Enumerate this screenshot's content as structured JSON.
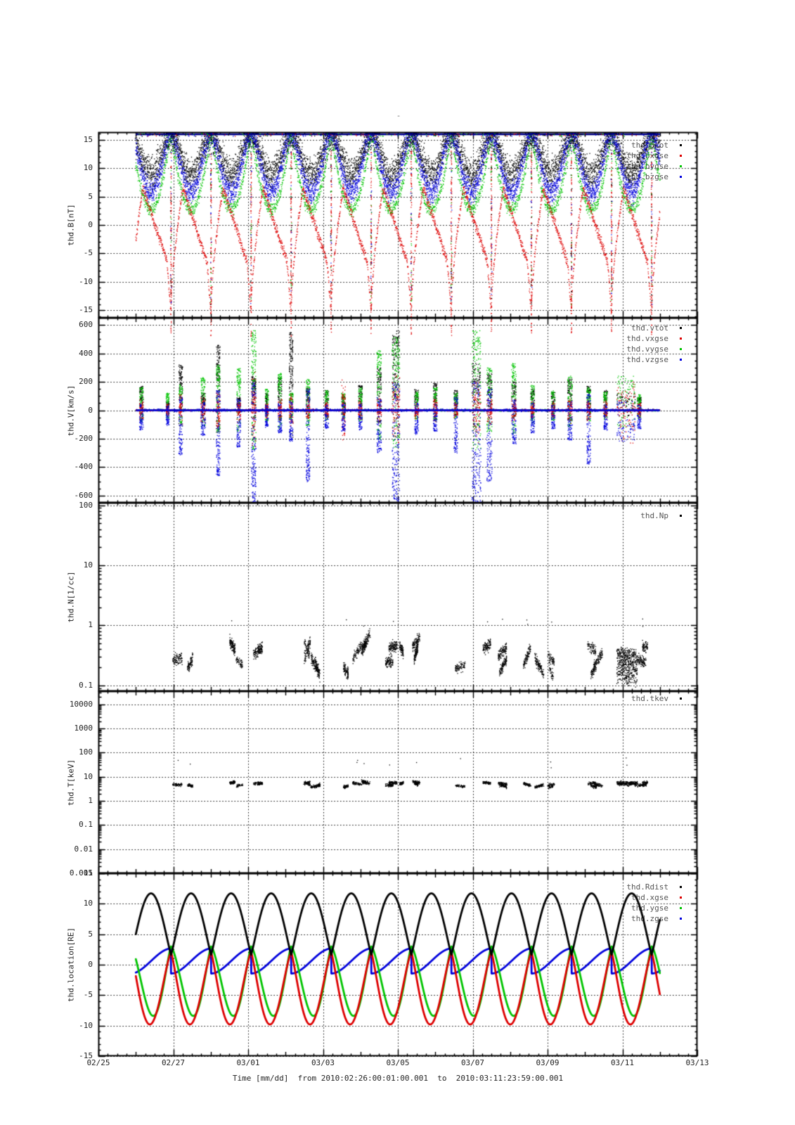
{
  "figure": {
    "title": "-",
    "background": "#ffffff"
  },
  "chart_data": {
    "type": "scatter",
    "title": "-",
    "xlabel": "Time [mm/dd]  from 2010:02:26:00:01:00.001  to  2010:03:11:23:59:00.001",
    "x_tick_labels": [
      "02/25",
      "02/27",
      "03/01",
      "03/03",
      "03/05",
      "03/07",
      "03/09",
      "03/11",
      "03/13"
    ],
    "x_range_days": [
      0,
      16
    ],
    "x_major_step_days": 2,
    "x_minor_step_days": 0.25,
    "data_span_days": [
      1.0,
      15.0
    ],
    "grid": "dotted",
    "orbit_model": {
      "period_days": 1.07,
      "first_perigee_day": 1.94
    },
    "colors": {
      "black": "#000000",
      "red": "#dd0000",
      "green": "#00c400",
      "blue": "#0000dd",
      "navy": "#000080"
    },
    "panels": [
      {
        "id": "bfield",
        "ylabel": "thd.B[nT]",
        "yscale": "linear",
        "ylim": [
          -16.3,
          16.3
        ],
        "yticks": [
          {
            "v": 15,
            "t": "15"
          },
          {
            "v": 10,
            "t": "10"
          },
          {
            "v": 5,
            "t": "5"
          },
          {
            "v": 0,
            "t": "0"
          },
          {
            "v": -5,
            "t": "-5"
          },
          {
            "v": -10,
            "t": "-10"
          },
          {
            "v": -15,
            "t": "-15"
          }
        ],
        "y_minor_step": 1,
        "legend": [
          {
            "label": "thd.btot",
            "color": "#000000"
          },
          {
            "label": "thd.bxgse",
            "color": "#dd0000"
          },
          {
            "label": "thd.bygse",
            "color": "#00c400"
          },
          {
            "label": "thd.bzgse",
            "color": "#0000dd"
          }
        ],
        "gen": "bfield",
        "model": {
          "top_saturation_line": {
            "color": "#000080",
            "value": 16.0
          },
          "btot": {
            "base": 12.2,
            "orbit_amp": 3.3,
            "noise": 2.6,
            "clip_max": 16.15
          },
          "bygse": {
            "top": 16.3,
            "dip_depth": 13.6,
            "dip_pow": 0.95,
            "noise": 1.1
          },
          "bzgse": {
            "top": 16.3,
            "dip_depth": 10.5,
            "dip_pow": 1.6,
            "noise": 2.0
          },
          "bxgse": {
            "min": -15.8,
            "peak": 6.5,
            "peak_phase": 0.3,
            "mid_end": -6.5,
            "plunge_phase": 0.9,
            "noise": 0.9
          },
          "perigee_streak_range": [
            -15.8,
            13.0
          ]
        }
      },
      {
        "id": "velocity",
        "ylabel": "thd.V[km/s]",
        "yscale": "linear",
        "ylim": [
          -650,
          650
        ],
        "yticks": [
          {
            "v": 600,
            "t": "600"
          },
          {
            "v": 400,
            "t": "400"
          },
          {
            "v": 200,
            "t": "200"
          },
          {
            "v": 0,
            "t": "0"
          },
          {
            "v": -200,
            "t": "-200"
          },
          {
            "v": -400,
            "t": "-400"
          },
          {
            "v": -600,
            "t": "-600"
          }
        ],
        "y_minor_step": 50,
        "legend": [
          {
            "label": "thd.vtot",
            "color": "#000000"
          },
          {
            "label": "thd.vxgse",
            "color": "#dd0000"
          },
          {
            "label": "thd.vygse",
            "color": "#00c400"
          },
          {
            "label": "thd.vzgse",
            "color": "#0000dd"
          }
        ],
        "gen": "velocity",
        "model": {
          "baseline": {
            "value": 0,
            "color": "#0000dd",
            "width": 2.5
          },
          "fuzz_sd": {
            "vtot": 5,
            "vxgse": 6,
            "vygse": 6,
            "vzgse": 8
          },
          "burst_fields": [
            "t_day",
            "vtot_max",
            "vxgse_ext",
            "vygse_max",
            "vzgse_min",
            "width_days"
          ],
          "bursts": [
            [
              1.15,
              170,
              80,
              160,
              -140,
              0.05
            ],
            [
              1.85,
              60,
              50,
              120,
              -110,
              0.04
            ],
            [
              2.2,
              320,
              120,
              180,
              -320,
              0.05
            ],
            [
              2.8,
              120,
              100,
              230,
              -180,
              0.06
            ],
            [
              3.2,
              460,
              160,
              320,
              -460,
              0.05
            ],
            [
              3.75,
              90,
              90,
              300,
              -260,
              0.05
            ],
            [
              4.15,
              240,
              280,
              560,
              -660,
              0.06
            ],
            [
              4.5,
              120,
              60,
              150,
              -120,
              0.04
            ],
            [
              4.85,
              230,
              90,
              260,
              -160,
              0.05
            ],
            [
              5.15,
              550,
              120,
              120,
              -220,
              0.05
            ],
            [
              5.6,
              160,
              80,
              220,
              -510,
              0.05
            ],
            [
              6.1,
              140,
              60,
              140,
              -130,
              0.05
            ],
            [
              6.55,
              100,
              220,
              120,
              -150,
              0.05
            ],
            [
              7.0,
              180,
              80,
              160,
              -140,
              0.05
            ],
            [
              7.5,
              320,
              100,
              420,
              -300,
              0.06
            ],
            [
              7.95,
              560,
              260,
              520,
              -640,
              0.1
            ],
            [
              8.5,
              150,
              70,
              130,
              -170,
              0.05
            ],
            [
              9.0,
              190,
              90,
              160,
              -150,
              0.05
            ],
            [
              9.55,
              140,
              60,
              120,
              -300,
              0.05
            ],
            [
              10.1,
              330,
              240,
              560,
              -660,
              0.12
            ],
            [
              10.45,
              260,
              120,
              300,
              -500,
              0.07
            ],
            [
              11.1,
              200,
              90,
              330,
              -240,
              0.06
            ],
            [
              11.6,
              150,
              70,
              180,
              -160,
              0.05
            ],
            [
              12.15,
              130,
              60,
              140,
              -130,
              0.05
            ],
            [
              12.6,
              220,
              100,
              240,
              -210,
              0.06
            ],
            [
              13.1,
              170,
              80,
              160,
              -380,
              0.05
            ],
            [
              13.55,
              140,
              70,
              130,
              -140,
              0.05
            ],
            [
              14.1,
              120,
              260,
              240,
              -220,
              0.25
            ],
            [
              14.45,
              90,
              60,
              110,
              -130,
              0.05
            ]
          ]
        }
      },
      {
        "id": "density",
        "ylabel": "thd.N[1/cc]",
        "yscale": "log",
        "ylim": [
          0.08,
          110
        ],
        "yticks": [
          {
            "v": 100,
            "t": "100"
          },
          {
            "v": 10,
            "t": "10"
          },
          {
            "v": 1,
            "t": "1"
          },
          {
            "v": 0.1,
            "t": "0.1"
          }
        ],
        "legend": [
          {
            "label": "thd.Np",
            "color": "#000000"
          }
        ],
        "gen": "density",
        "model": {
          "typical_range": [
            0.2,
            1.0
          ],
          "cluster_log_mean": -0.52,
          "cluster_log_spread": 0.5,
          "point_log_sd": 0.09,
          "high_outliers": {
            "count": 12,
            "value_range": [
              0.9,
              1.3
            ]
          },
          "tail_cluster": {
            "t_days": [
              13.85,
              14.4
            ],
            "value_range": [
              0.1,
              0.4
            ]
          }
        }
      },
      {
        "id": "temperature",
        "ylabel": "thd.T[keV]",
        "yscale": "log",
        "ylim": [
          0.001,
          35000
        ],
        "yticks": [
          {
            "v": 10000,
            "t": "10000"
          },
          {
            "v": 1000,
            "t": "1000"
          },
          {
            "v": 100,
            "t": "100"
          },
          {
            "v": 10,
            "t": "10"
          },
          {
            "v": 1,
            "t": "1"
          },
          {
            "v": 0.1,
            "t": "0.1"
          },
          {
            "v": 0.01,
            "t": "0.01"
          },
          {
            "v": 0.001,
            "t": "0.001"
          }
        ],
        "legend": [
          {
            "label": "thd.tkev",
            "color": "#000000"
          }
        ],
        "gen": "temperature",
        "model": {
          "typical_range_kev": [
            3,
            8
          ],
          "cluster_log_mean": 0.68,
          "cluster_log_spread": 0.2,
          "point_log_sd": 0.06,
          "high_outliers": {
            "count": 10,
            "value_range_log10": [
              1.3,
              1.78
            ]
          },
          "tail_cluster": {
            "t_days": [
              13.85,
              14.4
            ],
            "log_mean": 0.72
          }
        }
      },
      {
        "id": "location",
        "ylabel": "thd.location[RE]",
        "yscale": "linear",
        "ylim": [
          -15,
          15
        ],
        "yticks": [
          {
            "v": 15,
            "t": "15"
          },
          {
            "v": 10,
            "t": "10"
          },
          {
            "v": 5,
            "t": "5"
          },
          {
            "v": 0,
            "t": "0"
          },
          {
            "v": -5,
            "t": "-5"
          },
          {
            "v": -10,
            "t": "-10"
          },
          {
            "v": -15,
            "t": "-15"
          }
        ],
        "y_minor_step": 1,
        "legend": [
          {
            "label": "thd.Rdist",
            "color": "#000000"
          },
          {
            "label": "thd.xgse",
            "color": "#dd0000"
          },
          {
            "label": "thd.ygse",
            "color": "#00c400"
          },
          {
            "label": "thd.zgse",
            "color": "#0000dd"
          }
        ],
        "gen": "orbit-lines",
        "series": [
          {
            "name": "thd.Rdist",
            "color": "#000000",
            "kind": "R",
            "base": 1.6,
            "amp": 10.1,
            "pow": 1.1,
            "apogee": 11.7,
            "perigee": 1.6
          },
          {
            "name": "thd.xgse",
            "color": "#dd0000",
            "kind": "dip",
            "base": 2.0,
            "amp": 11.8,
            "pow": 1.35,
            "phase_pow": 0.92,
            "min": -9.8
          },
          {
            "name": "thd.ygse",
            "color": "#00c400",
            "kind": "dip",
            "base": 3.0,
            "amp": 11.4,
            "pow": 1.25,
            "phase_pow": 1.18,
            "min": -8.4
          },
          {
            "name": "thd.zgse",
            "color": "#0000dd",
            "kind": "ramp",
            "start": -1.45,
            "end": 2.65
          }
        ]
      }
    ]
  }
}
